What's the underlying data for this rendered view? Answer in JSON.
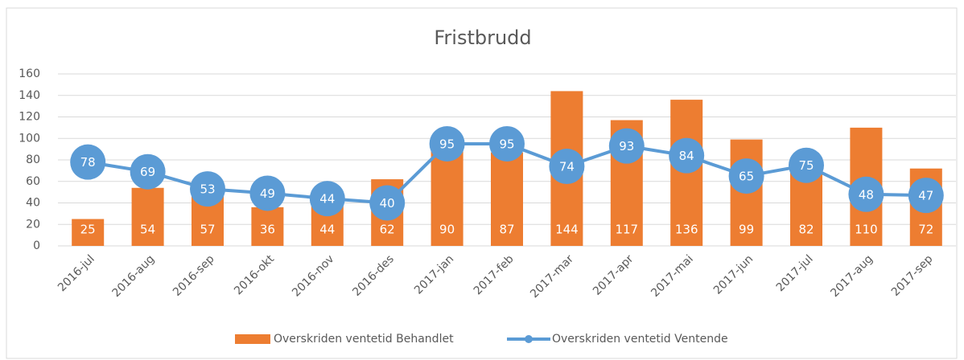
{
  "chart_data": {
    "type": "bar",
    "title": "Fristbrudd",
    "categories": [
      "2016-jul",
      "2016-aug",
      "2016-sep",
      "2016-okt",
      "2016-nov",
      "2016-des",
      "2017-jan",
      "2017-feb",
      "2017-mar",
      "2017-apr",
      "2017-mai",
      "2017-jun",
      "2017-jul",
      "2017-aug",
      "2017-sep"
    ],
    "series": [
      {
        "name": "Overskriden ventetid Behandlet",
        "type": "bar",
        "color": "#ed7d31",
        "values": [
          25,
          54,
          57,
          36,
          44,
          62,
          90,
          87,
          144,
          117,
          136,
          99,
          82,
          110,
          72
        ]
      },
      {
        "name": "Overskriden ventetid Ventende",
        "type": "line",
        "color": "#5b9bd5",
        "values": [
          78,
          69,
          53,
          49,
          44,
          40,
          95,
          95,
          74,
          93,
          84,
          65,
          75,
          48,
          47
        ]
      }
    ],
    "ylim": [
      0,
      160
    ],
    "yticks": [
      0,
      20,
      40,
      60,
      80,
      100,
      120,
      140,
      160
    ],
    "grid": true,
    "legend": "bottom"
  }
}
